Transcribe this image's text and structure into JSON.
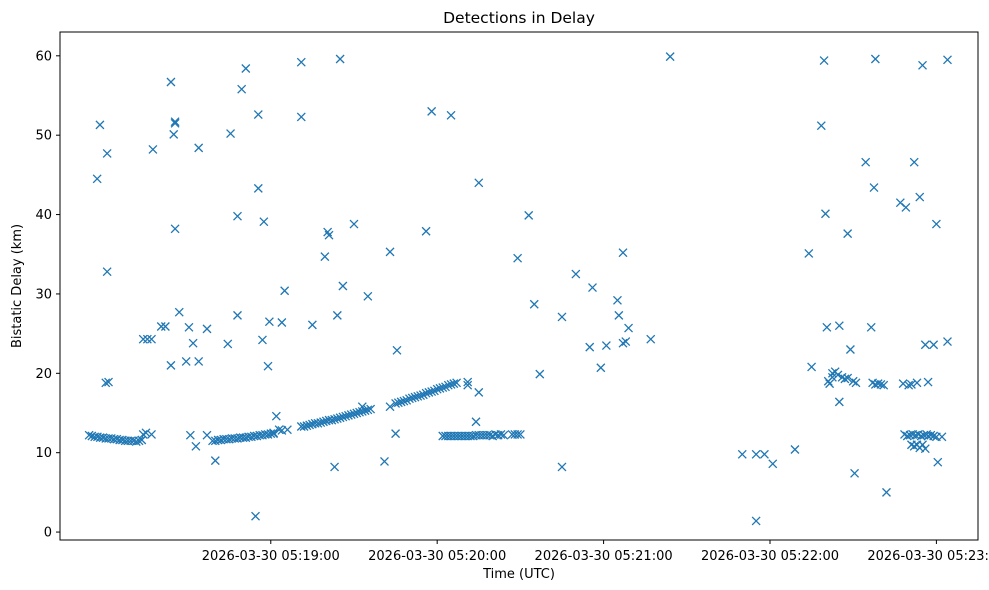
{
  "chart_data": {
    "type": "scatter",
    "title": "Detections in Delay",
    "xlabel": "Time (UTC)",
    "ylabel": "Bistatic Delay (km)",
    "marker": "x",
    "marker_color": "#1f77b4",
    "grid": false,
    "legend": "none",
    "x_unit": "seconds after 2026-03-30 05:18:00 UTC",
    "xlim": [
      -16,
      315
    ],
    "ylim": [
      -1,
      63
    ],
    "x_ticks": [
      {
        "value": 60,
        "label": "2026-03-30 05:19:00"
      },
      {
        "value": 120,
        "label": "2026-03-30 05:20:00"
      },
      {
        "value": 180,
        "label": "2026-03-30 05:21:00"
      },
      {
        "value": 240,
        "label": "2026-03-30 05:22:00"
      },
      {
        "value": 300,
        "label": "2026-03-30 05:23:00"
      }
    ],
    "y_ticks": [
      0,
      10,
      20,
      30,
      40,
      50,
      60
    ],
    "series": [
      {
        "points": [
          [
            -5.5,
            12.2
          ],
          [
            -4.5,
            12.1
          ],
          [
            -3.5,
            12.0
          ],
          [
            -2.5,
            12.0
          ],
          [
            -1.5,
            11.9
          ],
          [
            -0.5,
            11.9
          ],
          [
            0.5,
            11.8
          ],
          [
            1.5,
            11.8
          ],
          [
            2.5,
            11.8
          ],
          [
            3.5,
            11.7
          ],
          [
            4.5,
            11.7
          ],
          [
            5.5,
            11.6
          ],
          [
            6.5,
            11.6
          ],
          [
            7.5,
            11.5
          ],
          [
            8.5,
            11.5
          ],
          [
            9.5,
            11.5
          ],
          [
            10.5,
            11.5
          ],
          [
            11.5,
            11.4
          ],
          [
            12.5,
            11.5
          ],
          [
            13.5,
            11.6
          ],
          [
            14,
            12.3
          ],
          [
            15,
            12.5
          ],
          [
            17,
            12.3
          ],
          [
            -2.6,
            44.5
          ],
          [
            -1.6,
            51.3
          ],
          [
            0.5,
            18.8
          ],
          [
            1.5,
            18.9
          ],
          [
            1.0,
            32.8
          ],
          [
            1.0,
            47.7
          ],
          [
            14,
            24.3
          ],
          [
            15.5,
            24.3
          ],
          [
            17,
            24.3
          ],
          [
            17.5,
            48.2
          ],
          [
            20.5,
            25.9
          ],
          [
            22,
            25.9
          ],
          [
            24,
            56.7
          ],
          [
            24,
            21.0
          ],
          [
            25,
            50.1
          ],
          [
            25.5,
            51.5
          ],
          [
            25.5,
            51.7
          ],
          [
            25.5,
            38.2
          ],
          [
            27,
            27.7
          ],
          [
            29.5,
            21.5
          ],
          [
            30.5,
            25.8
          ],
          [
            31,
            12.2
          ],
          [
            32,
            23.8
          ],
          [
            33,
            10.8
          ],
          [
            34,
            21.5
          ],
          [
            34,
            48.4
          ],
          [
            37,
            12.2
          ],
          [
            37,
            25.6
          ],
          [
            40,
            9.0
          ],
          [
            39,
            11.5
          ],
          [
            40,
            11.5
          ],
          [
            41,
            11.6
          ],
          [
            42,
            11.6
          ],
          [
            43,
            11.7
          ],
          [
            44,
            11.7
          ],
          [
            45,
            11.7
          ],
          [
            46,
            11.8
          ],
          [
            47,
            11.8
          ],
          [
            48,
            11.8
          ],
          [
            49,
            11.9
          ],
          [
            50,
            11.9
          ],
          [
            51,
            11.9
          ],
          [
            52,
            12.0
          ],
          [
            53,
            12.0
          ],
          [
            54,
            12.1
          ],
          [
            55,
            12.1
          ],
          [
            56,
            12.2
          ],
          [
            57,
            12.2
          ],
          [
            58,
            12.3
          ],
          [
            59,
            12.3
          ],
          [
            60,
            12.4
          ],
          [
            61,
            12.4
          ],
          [
            44.5,
            23.7
          ],
          [
            45.5,
            50.2
          ],
          [
            48,
            27.3
          ],
          [
            48,
            39.8
          ],
          [
            49.5,
            55.8
          ],
          [
            51,
            58.4
          ],
          [
            54.5,
            2.0
          ],
          [
            55.5,
            52.6
          ],
          [
            55.5,
            43.3
          ],
          [
            57,
            24.2
          ],
          [
            57.5,
            39.1
          ],
          [
            59,
            20.9
          ],
          [
            59.5,
            26.5
          ],
          [
            61,
            12.5
          ],
          [
            62,
            14.6
          ],
          [
            63,
            12.9
          ],
          [
            64,
            12.8
          ],
          [
            64,
            26.4
          ],
          [
            65,
            30.4
          ],
          [
            66,
            12.9
          ],
          [
            71,
            59.2
          ],
          [
            71,
            52.3
          ],
          [
            71,
            13.3
          ],
          [
            72,
            13.3
          ],
          [
            73,
            13.4
          ],
          [
            74,
            13.5
          ],
          [
            75,
            13.6
          ],
          [
            76,
            13.7
          ],
          [
            77,
            13.7
          ],
          [
            78,
            13.8
          ],
          [
            79,
            13.9
          ],
          [
            80,
            14.0
          ],
          [
            81,
            14.1
          ],
          [
            82,
            14.1
          ],
          [
            83,
            14.2
          ],
          [
            84,
            14.3
          ],
          [
            85,
            14.4
          ],
          [
            86,
            14.5
          ],
          [
            87,
            14.6
          ],
          [
            88,
            14.7
          ],
          [
            89,
            14.8
          ],
          [
            90,
            14.9
          ],
          [
            91,
            15.0
          ],
          [
            92,
            15.1
          ],
          [
            93,
            15.2
          ],
          [
            94,
            15.3
          ],
          [
            95,
            15.4
          ],
          [
            96,
            15.5
          ],
          [
            75,
            26.1
          ],
          [
            79.5,
            34.7
          ],
          [
            80.5,
            37.8
          ],
          [
            81,
            37.4
          ],
          [
            83,
            8.2
          ],
          [
            84,
            27.3
          ],
          [
            85,
            59.6
          ],
          [
            86,
            31.0
          ],
          [
            90,
            38.8
          ],
          [
            93,
            15.8
          ],
          [
            95,
            29.7
          ],
          [
            101,
            8.9
          ],
          [
            103,
            35.3
          ],
          [
            105,
            12.4
          ],
          [
            105.5,
            22.9
          ],
          [
            103,
            15.8
          ],
          [
            105,
            16.2
          ],
          [
            106,
            16.3
          ],
          [
            107,
            16.4
          ],
          [
            108,
            16.5
          ],
          [
            109,
            16.6
          ],
          [
            110,
            16.8
          ],
          [
            111,
            16.9
          ],
          [
            112,
            17.0
          ],
          [
            113,
            17.1
          ],
          [
            114,
            17.2
          ],
          [
            115,
            17.3
          ],
          [
            116,
            17.5
          ],
          [
            117,
            17.6
          ],
          [
            118,
            17.7
          ],
          [
            119,
            17.8
          ],
          [
            120,
            18.0
          ],
          [
            121,
            18.1
          ],
          [
            122,
            18.2
          ],
          [
            123,
            18.3
          ],
          [
            124,
            18.5
          ],
          [
            125,
            18.6
          ],
          [
            126,
            18.7
          ],
          [
            127,
            18.8
          ],
          [
            116,
            37.9
          ],
          [
            118,
            53.0
          ],
          [
            122,
            12.1
          ],
          [
            123,
            12.1
          ],
          [
            124,
            12.1
          ],
          [
            125,
            12.1
          ],
          [
            126,
            12.1
          ],
          [
            127,
            12.1
          ],
          [
            128,
            12.1
          ],
          [
            129,
            12.1
          ],
          [
            130,
            12.1
          ],
          [
            131,
            12.1
          ],
          [
            132,
            12.1
          ],
          [
            133,
            12.1
          ],
          [
            134,
            12.2
          ],
          [
            135,
            12.2
          ],
          [
            136,
            12.2
          ],
          [
            137,
            12.2
          ],
          [
            138,
            12.2
          ],
          [
            139,
            12.2
          ],
          [
            140,
            12.1
          ],
          [
            141,
            12.3
          ],
          [
            142,
            12.2
          ],
          [
            143,
            12.3
          ],
          [
            144,
            12.2
          ],
          [
            147,
            12.3
          ],
          [
            148,
            12.3
          ],
          [
            149,
            12.3
          ],
          [
            150,
            12.3
          ],
          [
            125,
            52.5
          ],
          [
            131,
            18.9
          ],
          [
            131,
            18.5
          ],
          [
            134,
            13.9
          ],
          [
            135,
            17.6
          ],
          [
            135,
            44.0
          ],
          [
            149,
            34.5
          ],
          [
            153,
            39.9
          ],
          [
            155,
            28.7
          ],
          [
            157,
            19.9
          ],
          [
            165,
            27.1
          ],
          [
            165,
            8.2
          ],
          [
            170,
            32.5
          ],
          [
            175,
            23.3
          ],
          [
            176,
            30.8
          ],
          [
            179,
            20.7
          ],
          [
            181,
            23.5
          ],
          [
            185,
            29.2
          ],
          [
            185.5,
            27.3
          ],
          [
            187,
            35.2
          ],
          [
            187,
            23.8
          ],
          [
            188,
            24.0
          ],
          [
            189,
            25.7
          ],
          [
            197,
            24.3
          ],
          [
            204,
            59.9
          ],
          [
            230,
            9.8
          ],
          [
            235,
            9.8
          ],
          [
            235,
            1.4
          ],
          [
            238,
            9.8
          ],
          [
            241,
            8.6
          ],
          [
            249,
            10.4
          ],
          [
            254,
            35.1
          ],
          [
            255,
            20.8
          ],
          [
            258.5,
            51.2
          ],
          [
            259.5,
            59.4
          ],
          [
            260,
            40.1
          ],
          [
            260.5,
            25.8
          ],
          [
            261,
            19.0
          ],
          [
            261.5,
            18.7
          ],
          [
            262.5,
            19.5
          ],
          [
            262.5,
            20.0
          ],
          [
            263.5,
            20.2
          ],
          [
            264.5,
            19.8
          ],
          [
            265,
            26.0
          ],
          [
            265,
            16.4
          ],
          [
            266,
            19.5
          ],
          [
            267,
            19.3
          ],
          [
            268,
            19.4
          ],
          [
            268,
            37.6
          ],
          [
            269,
            23.0
          ],
          [
            270,
            19.0
          ],
          [
            270.5,
            7.4
          ],
          [
            271,
            18.8
          ],
          [
            274.5,
            46.6
          ],
          [
            276.5,
            25.8
          ],
          [
            277,
            18.8
          ],
          [
            277.5,
            43.4
          ],
          [
            278,
            59.6
          ],
          [
            278,
            18.6
          ],
          [
            279,
            18.7
          ],
          [
            280,
            18.6
          ],
          [
            281,
            18.5
          ],
          [
            282,
            5.0
          ],
          [
            287,
            41.5
          ],
          [
            288,
            18.7
          ],
          [
            289,
            40.9
          ],
          [
            290,
            18.5
          ],
          [
            291,
            18.6
          ],
          [
            292,
            46.6
          ],
          [
            293,
            18.8
          ],
          [
            294,
            42.2
          ],
          [
            295,
            58.8
          ],
          [
            296,
            23.6
          ],
          [
            297,
            18.9
          ],
          [
            299,
            23.6
          ],
          [
            300,
            38.8
          ],
          [
            300.5,
            8.8
          ],
          [
            302,
            12.0
          ],
          [
            304,
            59.5
          ],
          [
            304,
            24.0
          ],
          [
            288.5,
            12.3
          ],
          [
            289.5,
            12.1
          ],
          [
            290.5,
            12.2
          ],
          [
            291,
            11.0
          ],
          [
            291.5,
            12.3
          ],
          [
            292,
            10.8
          ],
          [
            292.5,
            12.2
          ],
          [
            293,
            11.0
          ],
          [
            293.5,
            12.3
          ],
          [
            294,
            10.6
          ],
          [
            294.5,
            12.1
          ],
          [
            295,
            11.0
          ],
          [
            295.5,
            12.2
          ],
          [
            296,
            10.5
          ],
          [
            296.5,
            12.3
          ],
          [
            297,
            12.1
          ],
          [
            298,
            12.2
          ],
          [
            299,
            12.1
          ],
          [
            300,
            12.0
          ]
        ]
      }
    ]
  }
}
